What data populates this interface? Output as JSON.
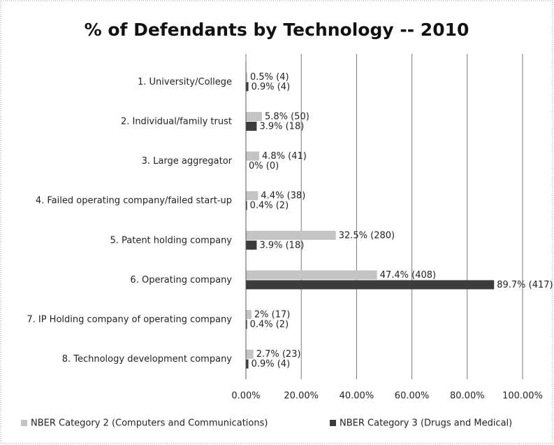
{
  "chart_data": {
    "type": "hbar",
    "title": "% of Defendants by Technology -- 2010",
    "categories": [
      "1. University/College",
      "2. Individual/family trust",
      "3. Large aggregator",
      "4. Failed operating company/failed start-up",
      "5. Patent holding company",
      "6. Operating company",
      "7. IP Holding company of operating company",
      "8. Technology development company"
    ],
    "series": [
      {
        "name": "NBER Category 2 (Computers and Communications)",
        "color": "#c4c4c4",
        "values": [
          0.5,
          5.8,
          4.8,
          4.4,
          32.5,
          47.4,
          2,
          2.7
        ],
        "value_labels": [
          "0.5% (4)",
          "5.8% (50)",
          "4.8% (41)",
          "4.4% (38)",
          "32.5% (280)",
          "47.4% (408)",
          "2% (17)",
          "2.7% (23)"
        ]
      },
      {
        "name": "NBER Category 3 (Drugs and Medical)",
        "color": "#3c3c3c",
        "values": [
          0.9,
          3.9,
          0,
          0.4,
          3.9,
          89.7,
          0.4,
          0.9
        ],
        "value_labels": [
          "0.9% (4)",
          "3.9% (18)",
          "0% (0)",
          "0.4% (2)",
          "3.9% (18)",
          "89.7% (417)",
          "0.4% (2)",
          "0.9% (4)"
        ]
      }
    ],
    "xlim": [
      0,
      100
    ],
    "xticks": [
      {
        "value": 0,
        "label": "0.00%"
      },
      {
        "value": 20,
        "label": "20.00%"
      },
      {
        "value": 40,
        "label": "40.00%"
      },
      {
        "value": 60,
        "label": "60.00%"
      },
      {
        "value": 80,
        "label": "80.00%"
      },
      {
        "value": 100,
        "label": "100.00%"
      }
    ],
    "grid": true,
    "legend": "bottom"
  }
}
